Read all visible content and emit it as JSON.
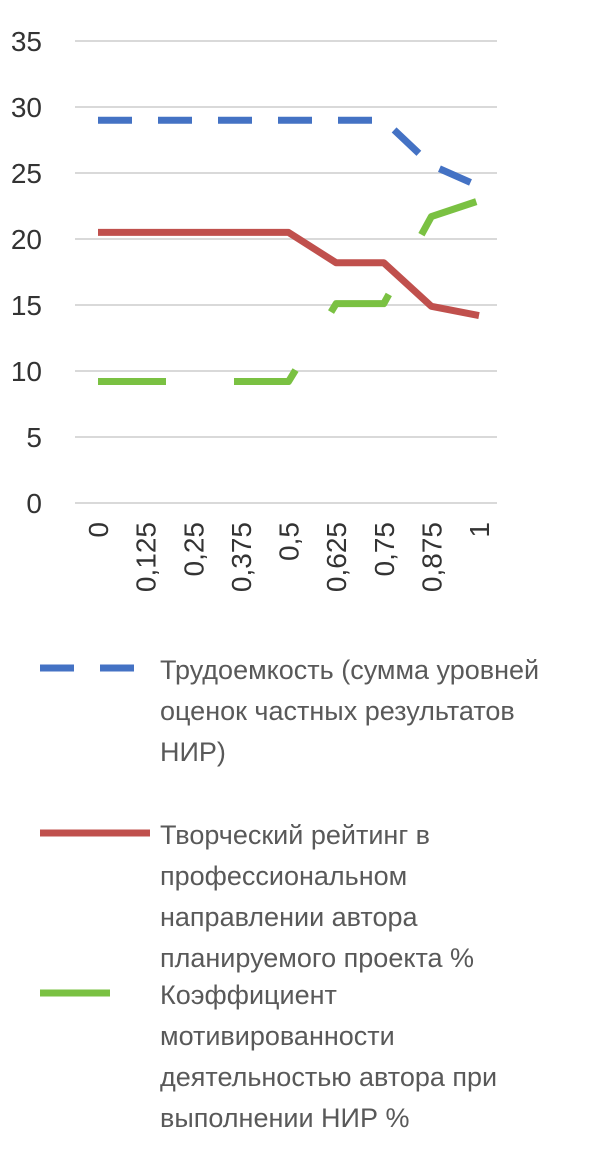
{
  "chart_data": {
    "type": "line",
    "categories": [
      "0",
      "0,125",
      "0,25",
      "0,375",
      "0,5",
      "0,625",
      "0,75",
      "0,875",
      "1"
    ],
    "series": [
      {
        "name": "Трудоемкость (сумма уровней оценок частных результатов НИР)",
        "color": "#4472c4",
        "dash": "dashed",
        "values": [
          29,
          29,
          29,
          29,
          29,
          29,
          29,
          25.6,
          24
        ]
      },
      {
        "name": "Творческий рейтинг в профессиональном направлении автора планируемого проекта %",
        "color": "#c0504d",
        "dash": "solid",
        "values": [
          20.5,
          20.5,
          20.5,
          20.5,
          20.5,
          18.2,
          18.2,
          14.9,
          14.2
        ]
      },
      {
        "name": "Коэффициент мотивированности деятельностью автора при выполнении НИР %",
        "color": "#7ac142",
        "dash": "long-dashed",
        "values": [
          9.2,
          9.2,
          9.2,
          9.2,
          9.2,
          15.1,
          15.1,
          21.7,
          22.9
        ]
      }
    ],
    "ylim": [
      0,
      35
    ],
    "yticks": [
      0,
      5,
      10,
      15,
      20,
      25,
      30,
      35
    ],
    "grid": true,
    "legend": "bottom"
  }
}
